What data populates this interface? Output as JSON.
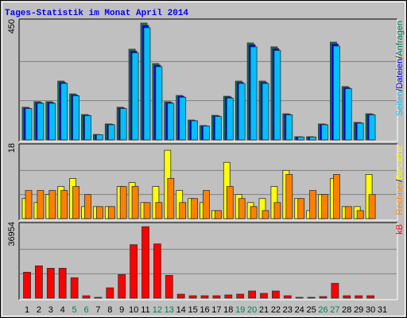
{
  "chart_data": [
    {
      "type": "bar",
      "title": "Tages-Statistik im Monat April 2014",
      "legend_separator": "/",
      "ylim": [
        0,
        450
      ],
      "yticks": [
        450
      ],
      "series": [
        {
          "name": "Anfragen",
          "color": "#00805c",
          "values": [
            125,
            146,
            146,
            225,
            176,
            97,
            21,
            61,
            125,
            347,
            447,
            292,
            146,
            170,
            76,
            55,
            94,
            167,
            225,
            371,
            225,
            356,
            100,
            12,
            12,
            61,
            374,
            204,
            67,
            100,
            null
          ]
        },
        {
          "name": "Dateien",
          "color": "#0000ff",
          "values": [
            122,
            143,
            143,
            220,
            172,
            95,
            20,
            60,
            122,
            340,
            438,
            286,
            143,
            167,
            74,
            54,
            92,
            164,
            220,
            364,
            220,
            349,
            98,
            12,
            12,
            60,
            367,
            200,
            66,
            98,
            null
          ]
        },
        {
          "name": "Seiten",
          "color": "#00c0ff",
          "values": [
            120,
            140,
            140,
            216,
            169,
            93,
            20,
            58,
            120,
            333,
            429,
            280,
            140,
            163,
            73,
            53,
            90,
            160,
            216,
            356,
            216,
            342,
            96,
            11,
            11,
            58,
            359,
            196,
            64,
            96,
            null
          ]
        }
      ]
    },
    {
      "type": "bar",
      "legend_separator": "/",
      "ylim": [
        0,
        18
      ],
      "yticks": [
        18
      ],
      "series": [
        {
          "name": "Besuche",
          "color": "#ffff00",
          "values": [
            5,
            4,
            6,
            8,
            10,
            3,
            3,
            3,
            8,
            9,
            4,
            8,
            17,
            7,
            5,
            4,
            2,
            14,
            6,
            4,
            5,
            8,
            12,
            5,
            2,
            6,
            10,
            3,
            3,
            11,
            null
          ]
        },
        {
          "name": "Rechner",
          "color": "#ff8000",
          "values": [
            7,
            7,
            7,
            7,
            8,
            6,
            3,
            3,
            8,
            8,
            4,
            4,
            10,
            4,
            5,
            7,
            2,
            8,
            5,
            3,
            2,
            4,
            11,
            5,
            7,
            6,
            11,
            3,
            2,
            6,
            null
          ]
        }
      ]
    },
    {
      "type": "bar",
      "ylim": [
        0,
        36954
      ],
      "yticks": [
        36954
      ],
      "series": [
        {
          "name": "kB",
          "color": "#ff0000",
          "values": [
            13100,
            16300,
            15100,
            15100,
            10300,
            1200,
            400,
            5200,
            11900,
            27000,
            36100,
            27400,
            11500,
            2000,
            1200,
            1200,
            1200,
            1600,
            2000,
            3600,
            2400,
            3600,
            1200,
            400,
            400,
            800,
            7500,
            1200,
            1200,
            1200,
            null
          ]
        }
      ],
      "categories": [
        "1",
        "2",
        "3",
        "4",
        "5",
        "6",
        "7",
        "8",
        "9",
        "10",
        "11",
        "12",
        "13",
        "14",
        "15",
        "16",
        "17",
        "18",
        "19",
        "20",
        "21",
        "22",
        "23",
        "24",
        "25",
        "26",
        "27",
        "28",
        "29",
        "30",
        "31"
      ],
      "category_colors": [
        "#000000",
        "#000000",
        "#000000",
        "#000000",
        "#00805c",
        "#00805c",
        "#000000",
        "#000000",
        "#000000",
        "#000000",
        "#000000",
        "#00805c",
        "#00805c",
        "#000000",
        "#000000",
        "#000000",
        "#000000",
        "#000000",
        "#00805c",
        "#00805c",
        "#000000",
        "#000000",
        "#000000",
        "#000000",
        "#000000",
        "#00805c",
        "#00805c",
        "#000000",
        "#000000",
        "#000000",
        "#000000"
      ]
    }
  ]
}
